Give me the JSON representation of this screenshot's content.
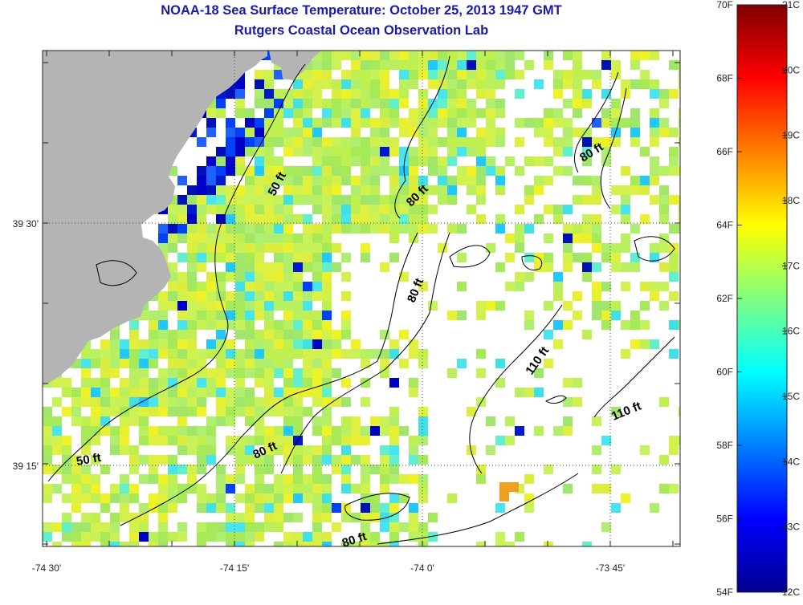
{
  "title": {
    "line1": "NOAA-18 Sea Surface Temperature:  October 25, 2013 1947 GMT",
    "line2": "Rutgers Coastal Ocean Observation Lab"
  },
  "map": {
    "lon_ticks": [
      "-74 30'",
      "-74 15'",
      "-74 0'",
      "-73 45'"
    ],
    "lat_ticks": [
      "39 30'",
      "39 15'"
    ],
    "contours": [
      "50 ft",
      "80 ft",
      "80 ft",
      "80 ft",
      "80 ft",
      "80 ft",
      "110 ft",
      "110 ft",
      "50 ft"
    ]
  },
  "colorbar": {
    "f_labels": [
      "70F",
      "68F",
      "66F",
      "64F",
      "62F",
      "60F",
      "58F",
      "56F",
      "54F"
    ],
    "c_labels": [
      "21C",
      "20C",
      "19C",
      "18C",
      "17C",
      "16C",
      "15C",
      "14C",
      "13C",
      "12C"
    ],
    "colors": {
      "land": "#b4b4b4",
      "warm": "#7f0000",
      "cold": "#00007f"
    }
  }
}
